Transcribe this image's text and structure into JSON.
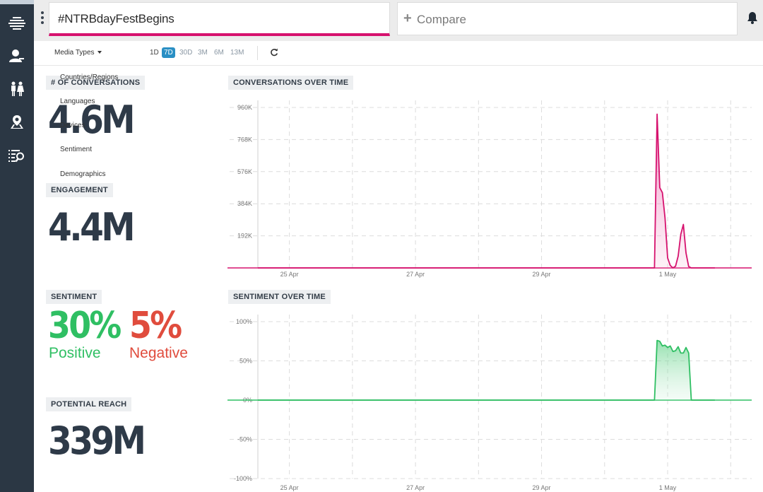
{
  "search": {
    "query": "#NTRBdayFestBegins",
    "compare_placeholder": "Compare"
  },
  "toolbar": {
    "media_types": "Media Types",
    "ranges": [
      "1D",
      "7D",
      "30D",
      "3M",
      "6M",
      "13M"
    ],
    "selected_range": "7D"
  },
  "menu": {
    "items": [
      "Countries/Regions",
      "Languages",
      "Devices",
      "Sentiment",
      "Demographics"
    ]
  },
  "metrics": {
    "conversations": {
      "label": "# OF CONVERSATIONS",
      "value": "4.6M"
    },
    "engagement": {
      "label": "ENGAGEMENT",
      "value": "4.4M"
    },
    "sentiment": {
      "label": "SENTIMENT",
      "positive_value": "30%",
      "positive_label": "Positive",
      "negative_value": "5%",
      "negative_label": "Negative"
    },
    "reach": {
      "label": "POTENTIAL REACH",
      "value": "339M"
    }
  },
  "colors": {
    "accent": "#d6126e",
    "positive": "#2fbf63",
    "negative": "#e04c3d",
    "sidebar": "#2b3744",
    "selected_range": "#2a8fc4"
  },
  "chart_data": [
    {
      "type": "area",
      "title": "CONVERSATIONS OVER TIME",
      "x": [
        "24 Apr 12:00",
        "25 Apr",
        "26 Apr",
        "27 Apr",
        "28 Apr",
        "29 Apr",
        "30 Apr",
        "30 Apr 19:00",
        "30 Apr 20:00",
        "30 Apr 21:00",
        "30 Apr 22:00",
        "30 Apr 23:00",
        "1 May 00:00",
        "1 May 01:00",
        "1 May 02:00",
        "1 May 03:00",
        "1 May 04:00",
        "1 May 05:00",
        "1 May 06:00",
        "1 May 07:00",
        "1 May 08:00",
        "1 May 09:00",
        "1 May 10:00",
        "1 May 11:00",
        "1 May 12:00",
        "1 May 14:00",
        "1 May 18:00"
      ],
      "series": [
        {
          "color": "#d6126e",
          "values": [
            0,
            0,
            0,
            0,
            0,
            0,
            0,
            0,
            920000,
            480000,
            450000,
            300000,
            60000,
            15000,
            0,
            10000,
            70000,
            200000,
            260000,
            90000,
            8000,
            0,
            0,
            0,
            0,
            0,
            0
          ]
        }
      ],
      "xticks": [
        "25 Apr",
        "27 Apr",
        "29 Apr",
        "1 May"
      ],
      "yticks": [
        "192K",
        "384K",
        "576K",
        "768K",
        "960K"
      ],
      "ylim": [
        0,
        960000
      ],
      "grid": true
    },
    {
      "type": "area",
      "title": "SENTIMENT OVER TIME",
      "x": [
        "24 Apr 12:00",
        "25 Apr",
        "26 Apr",
        "27 Apr",
        "28 Apr",
        "29 Apr",
        "30 Apr",
        "30 Apr 19:00",
        "30 Apr 20:00",
        "30 Apr 21:00",
        "30 Apr 22:00",
        "30 Apr 23:00",
        "1 May 00:00",
        "1 May 01:00",
        "1 May 02:00",
        "1 May 03:00",
        "1 May 04:00",
        "1 May 05:00",
        "1 May 06:00",
        "1 May 07:00",
        "1 May 08:00",
        "1 May 09:00",
        "1 May 10:00",
        "1 May 12:00",
        "1 May 18:00"
      ],
      "series": [
        {
          "color": "#2fbf63",
          "values": [
            0,
            0,
            0,
            0,
            0,
            0,
            0,
            0,
            76,
            75,
            69,
            70,
            67,
            69,
            62,
            63,
            68,
            60,
            60,
            67,
            60,
            0,
            0,
            0,
            0
          ]
        }
      ],
      "xticks": [
        "25 Apr",
        "27 Apr",
        "29 Apr",
        "1 May"
      ],
      "yticks": [
        "100%",
        "50%",
        "0%",
        "-50%",
        "-100%"
      ],
      "ylim": [
        -100,
        100
      ],
      "grid": true
    }
  ]
}
